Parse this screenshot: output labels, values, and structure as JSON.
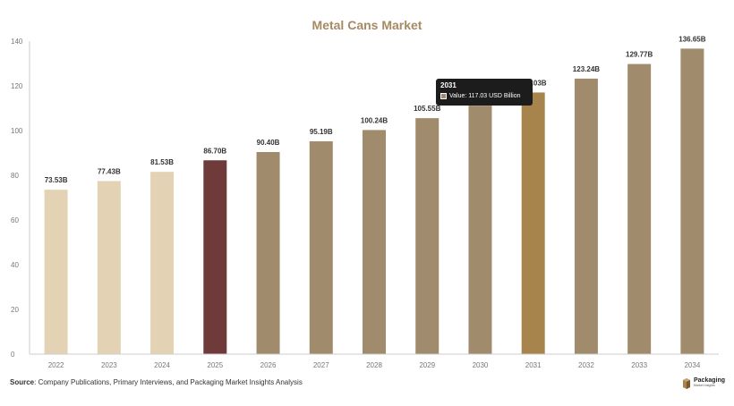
{
  "chart_data": {
    "type": "bar",
    "title": "Metal Cans Market",
    "categories": [
      "2022",
      "2023",
      "2024",
      "2025",
      "2026",
      "2027",
      "2028",
      "2029",
      "2030",
      "2031",
      "2032",
      "2033",
      "2034"
    ],
    "values": [
      73.53,
      77.43,
      81.53,
      86.7,
      90.4,
      95.19,
      100.24,
      105.55,
      111.15,
      117.03,
      123.24,
      129.77,
      136.65
    ],
    "data_labels": [
      "73.53B",
      "77.43B",
      "81.53B",
      "86.70B",
      "90.40B",
      "95.19B",
      "100.24B",
      "105.55B",
      "",
      "117.03B",
      "123.24B",
      "129.77B",
      "136.65B"
    ],
    "bar_colors": [
      "#e3d3b4",
      "#e3d3b4",
      "#e3d3b4",
      "#6e3a3a",
      "#a08b6c",
      "#a08b6c",
      "#a08b6c",
      "#a08b6c",
      "#a08b6c",
      "#a6844c",
      "#a08b6c",
      "#a08b6c",
      "#a08b6c"
    ],
    "ylim": [
      0,
      140
    ],
    "yticks": [
      0,
      20,
      40,
      60,
      80,
      100,
      120,
      140
    ],
    "grid": false,
    "tooltip": {
      "title": "2031",
      "text": "Value: 117.03 USD Billion",
      "swatch_color": "#a08b6c"
    }
  },
  "footer": {
    "source_label": "Source",
    "source_text": ": Company Publications, Primary Interviews, and Packaging Market Insights Analysis"
  },
  "logo": {
    "name": "Packaging",
    "subtitle": "Market Insights"
  },
  "colors": {
    "title": "#a68a64",
    "axis": "#cccccc"
  }
}
